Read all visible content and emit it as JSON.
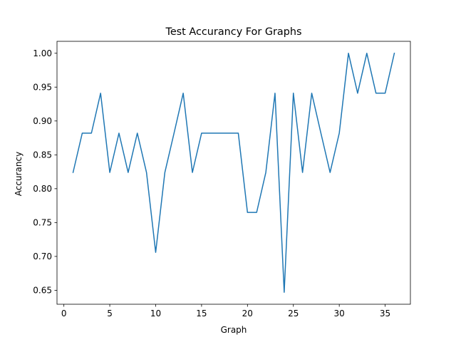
{
  "chart_data": {
    "type": "line",
    "title": "Test Accurancy For Graphs",
    "xlabel": "Graph",
    "ylabel": "Accurancy",
    "xlim": [
      -0.75,
      37.75
    ],
    "ylim": [
      0.6294,
      1.0176
    ],
    "xticks": [
      0,
      5,
      10,
      15,
      20,
      25,
      30,
      35
    ],
    "xtick_labels": [
      "0",
      "5",
      "10",
      "15",
      "20",
      "25",
      "30",
      "35"
    ],
    "yticks": [
      0.65,
      0.7,
      0.75,
      0.8,
      0.85,
      0.9,
      0.95,
      1.0
    ],
    "ytick_labels": [
      "0.65",
      "0.70",
      "0.75",
      "0.80",
      "0.85",
      "0.90",
      "0.95",
      "1.00"
    ],
    "grid": false,
    "series_color": "#1f77b4",
    "x": [
      1,
      2,
      3,
      4,
      5,
      6,
      7,
      8,
      9,
      10,
      11,
      12,
      13,
      14,
      15,
      16,
      17,
      18,
      19,
      20,
      21,
      22,
      23,
      24,
      25,
      26,
      27,
      28,
      29,
      30,
      31,
      32,
      33,
      34,
      35,
      36
    ],
    "series": [
      {
        "values": [
          0.824,
          0.882,
          0.882,
          0.941,
          0.824,
          0.882,
          0.824,
          0.882,
          0.824,
          0.706,
          0.824,
          0.882,
          0.941,
          0.824,
          0.882,
          0.882,
          0.882,
          0.882,
          0.882,
          0.765,
          0.765,
          0.824,
          0.941,
          0.647,
          0.941,
          0.824,
          0.941,
          0.882,
          0.824,
          0.882,
          1.0,
          0.941,
          1.0,
          0.941,
          0.941,
          1.0
        ]
      }
    ]
  }
}
